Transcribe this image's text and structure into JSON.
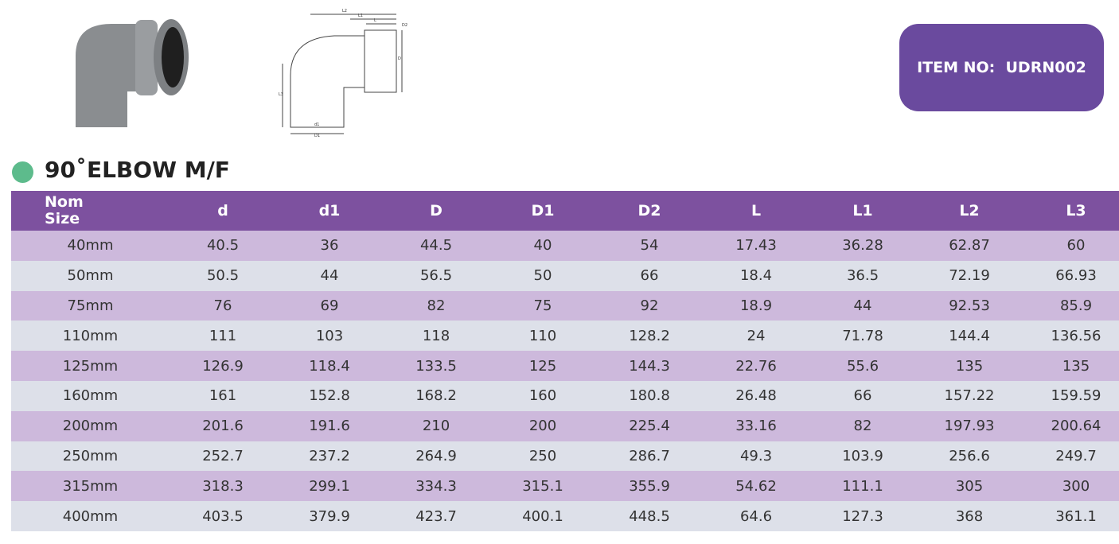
{
  "header": {
    "item_no": "ITEM NO:  UDRN002",
    "title": "90˚ELBOW M/F"
  },
  "drawing": {
    "labels": [
      "L2",
      "L1",
      "L",
      "D2",
      "D",
      "L3",
      "d1",
      "D1"
    ]
  },
  "table": {
    "columns": [
      "Nom Size",
      "d",
      "d1",
      "D",
      "D1",
      "D2",
      "L",
      "L1",
      "L2",
      "L3"
    ],
    "rows": [
      [
        "40mm",
        "40.5",
        "36",
        "44.5",
        "40",
        "54",
        "17.43",
        "36.28",
        "62.87",
        "60"
      ],
      [
        "50mm",
        "50.5",
        "44",
        "56.5",
        "50",
        "66",
        "18.4",
        "36.5",
        "72.19",
        "66.93"
      ],
      [
        "75mm",
        "76",
        "69",
        "82",
        "75",
        "92",
        "18.9",
        "44",
        "92.53",
        "85.9"
      ],
      [
        "110mm",
        "111",
        "103",
        "118",
        "110",
        "128.2",
        "24",
        "71.78",
        "144.4",
        "136.56"
      ],
      [
        "125mm",
        "126.9",
        "118.4",
        "133.5",
        "125",
        "144.3",
        "22.76",
        "55.6",
        "135",
        "135"
      ],
      [
        "160mm",
        "161",
        "152.8",
        "168.2",
        "160",
        "180.8",
        "26.48",
        "66",
        "157.22",
        "159.59"
      ],
      [
        "200mm",
        "201.6",
        "191.6",
        "210",
        "200",
        "225.4",
        "33.16",
        "82",
        "197.93",
        "200.64"
      ],
      [
        "250mm",
        "252.7",
        "237.2",
        "264.9",
        "250",
        "286.7",
        "49.3",
        "103.9",
        "256.6",
        "249.7"
      ],
      [
        "315mm",
        "318.3",
        "299.1",
        "334.3",
        "315.1",
        "355.9",
        "54.62",
        "111.1",
        "305",
        "300"
      ],
      [
        "400mm",
        "403.5",
        "379.9",
        "423.7",
        "400.1",
        "448.5",
        "64.6",
        "127.3",
        "368",
        "361.1"
      ]
    ]
  }
}
